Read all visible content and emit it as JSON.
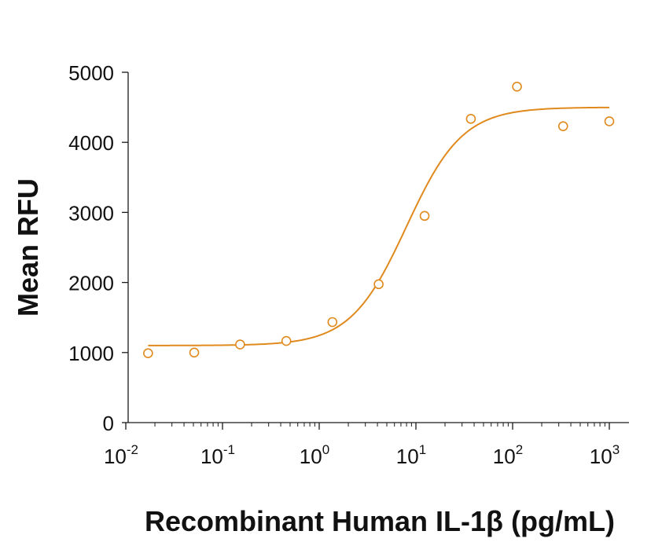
{
  "chart_data": {
    "type": "scatter",
    "title": "",
    "xlabel": "Recombinant Human IL-1β (pg/mL)",
    "ylabel": "Mean RFU",
    "xscale": "log",
    "xlim": [
      0.01,
      1000
    ],
    "ylim": [
      0,
      5000
    ],
    "x_ticks": [
      {
        "value": 0.01,
        "base": "10",
        "exp": "-2"
      },
      {
        "value": 0.1,
        "base": "10",
        "exp": "-1"
      },
      {
        "value": 1,
        "base": "10",
        "exp": "0"
      },
      {
        "value": 10,
        "base": "10",
        "exp": "1"
      },
      {
        "value": 100,
        "base": "10",
        "exp": "2"
      },
      {
        "value": 1000,
        "base": "10",
        "exp": "3"
      }
    ],
    "y_ticks": [
      "0",
      "1000",
      "2000",
      "3000",
      "4000",
      "5000"
    ],
    "grid": false,
    "color": "#E08A1E",
    "series": [
      {
        "x": [
          0.017,
          0.051,
          0.152,
          0.457,
          1.37,
          4.12,
          12.3,
          37,
          111,
          333,
          1000
        ],
        "y": [
          990,
          1000,
          1115,
          1165,
          1435,
          1975,
          2950,
          4335,
          4795,
          4230,
          4300
        ],
        "marker": "open-circle"
      }
    ],
    "fit": {
      "type": "4PL",
      "bottom": 1100,
      "top": 4500,
      "ec50": 8,
      "hill": 1.5,
      "x_range": [
        0.017,
        1000
      ]
    }
  }
}
